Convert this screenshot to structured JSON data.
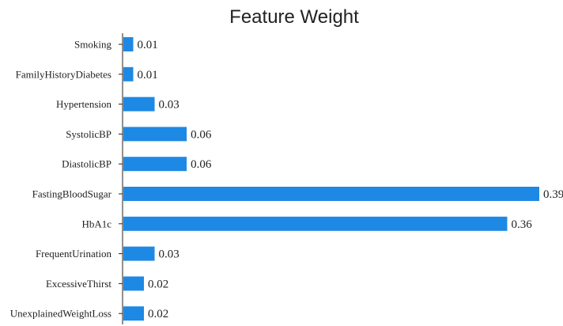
{
  "chart_data": {
    "type": "bar",
    "orientation": "horizontal",
    "title": "Feature Weight",
    "xlabel": "",
    "ylabel": "",
    "categories": [
      "Smoking",
      "FamilyHistoryDiabetes",
      "Hypertension",
      "SystolicBP",
      "DiastolicBP",
      "FastingBloodSugar",
      "HbA1c",
      "FrequentUrination",
      "ExcessiveThirst",
      "UnexplainedWeightLoss"
    ],
    "values": [
      0.01,
      0.01,
      0.03,
      0.06,
      0.06,
      0.39,
      0.36,
      0.03,
      0.02,
      0.02
    ],
    "value_labels": [
      "0.01",
      "0.01",
      "0.03",
      "0.06",
      "0.06",
      "0.39",
      "0.36",
      "0.03",
      "0.02",
      "0.02"
    ],
    "xlim": [
      0,
      0.39
    ],
    "grid": false,
    "bar_color": "#1e88e5",
    "show_x_axis": false
  }
}
